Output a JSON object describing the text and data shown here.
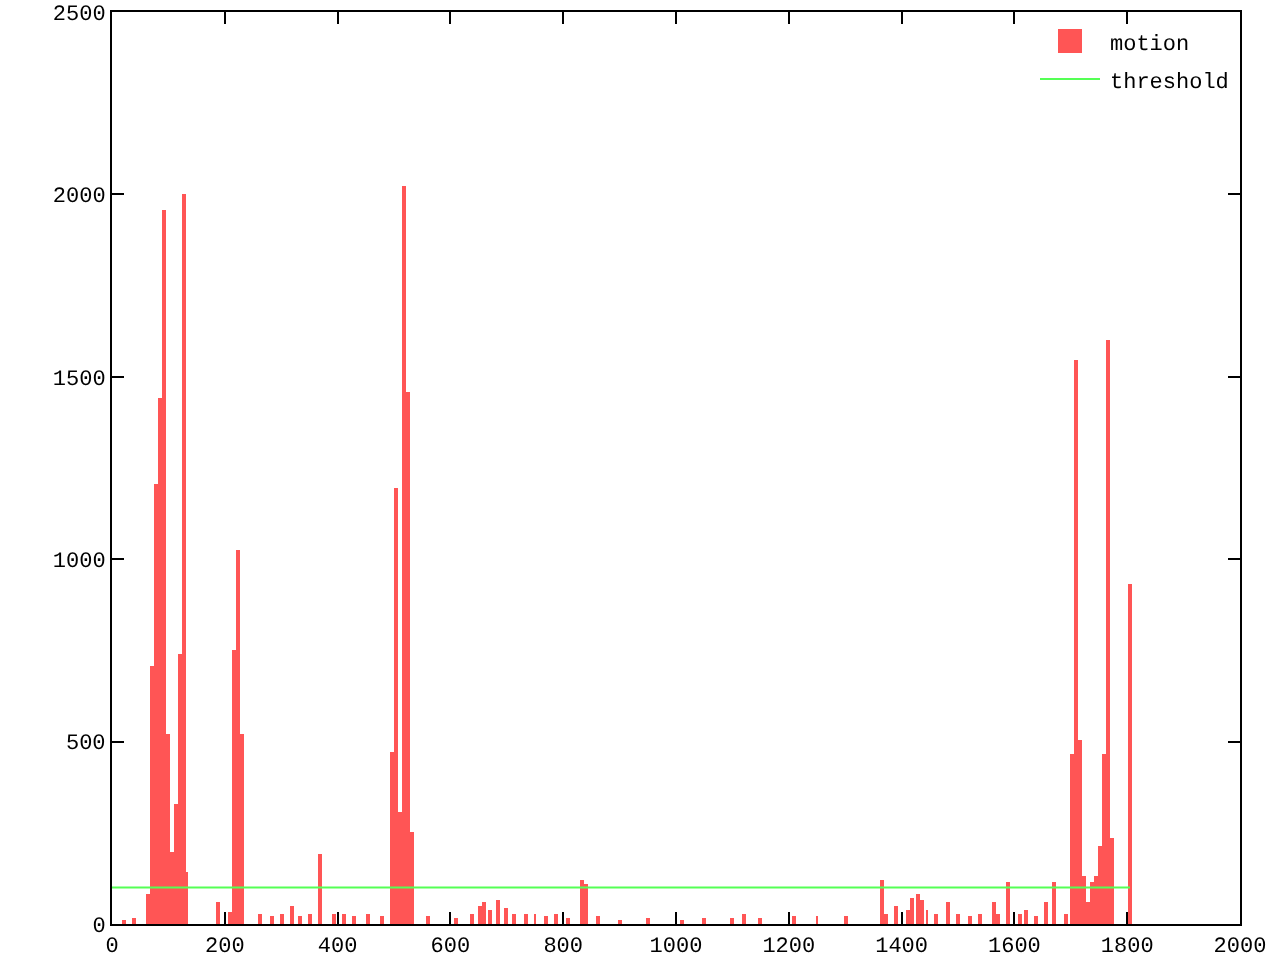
{
  "chart_data": {
    "type": "bar",
    "xlim": [
      0,
      2000
    ],
    "xticks": [
      0,
      200,
      400,
      600,
      800,
      1000,
      1200,
      1400,
      1600,
      1800,
      2000
    ],
    "ylim": [
      0,
      2500
    ],
    "yticks": [
      0,
      500,
      1000,
      1500,
      2000,
      2500
    ],
    "grid": false,
    "legend": "top right",
    "series": [
      {
        "name": "motion",
        "color": "#ff5555",
        "x": [
          20,
          40,
          63,
          70,
          77,
          84,
          91,
          98,
          105,
          112,
          119,
          126,
          133,
          188,
          208,
          218,
          225,
          232,
          262,
          285,
          300,
          318,
          335,
          350,
          370,
          395,
          410,
          430,
          455,
          480,
          497,
          504,
          511,
          518,
          525,
          532,
          560,
          610,
          640,
          652,
          660,
          670,
          685,
          700,
          713,
          734,
          750,
          770,
          786,
          810,
          832,
          839,
          860,
          900,
          950,
          1010,
          1050,
          1100,
          1120,
          1150,
          1210,
          1250,
          1300,
          1365,
          1372,
          1390,
          1410,
          1420,
          1430,
          1437,
          1445,
          1460,
          1482,
          1500,
          1520,
          1540,
          1563,
          1570,
          1589,
          1610,
          1620,
          1640,
          1656,
          1670,
          1690,
          1701,
          1708,
          1715,
          1722,
          1730,
          1737,
          1744,
          1751,
          1758,
          1765,
          1772,
          1805
        ],
        "values": [
          10,
          15,
          83,
          707,
          1206,
          1440,
          1960,
          520,
          200,
          330,
          740,
          2000,
          140,
          60,
          35,
          750,
          1025,
          520,
          30,
          20,
          25,
          50,
          20,
          30,
          190,
          25,
          30,
          20,
          25,
          20,
          470,
          1195,
          307,
          2025,
          1458,
          252,
          20,
          15,
          25,
          50,
          60,
          40,
          65,
          45,
          30,
          25,
          30,
          20,
          25,
          15,
          120,
          110,
          20,
          10,
          15,
          10,
          15,
          15,
          30,
          15,
          20,
          20,
          20,
          120,
          30,
          50,
          40,
          70,
          80,
          65,
          40,
          30,
          60,
          30,
          20,
          25,
          60,
          30,
          115,
          30,
          40,
          20,
          60,
          115,
          30,
          466,
          1546,
          504,
          130,
          60,
          115,
          130,
          214,
          466,
          1600,
          236,
          932
        ]
      },
      {
        "name": "threshold",
        "type": "line",
        "color": "#55ff55",
        "x": [
          0,
          1805
        ],
        "values": [
          100,
          100
        ]
      }
    ]
  }
}
